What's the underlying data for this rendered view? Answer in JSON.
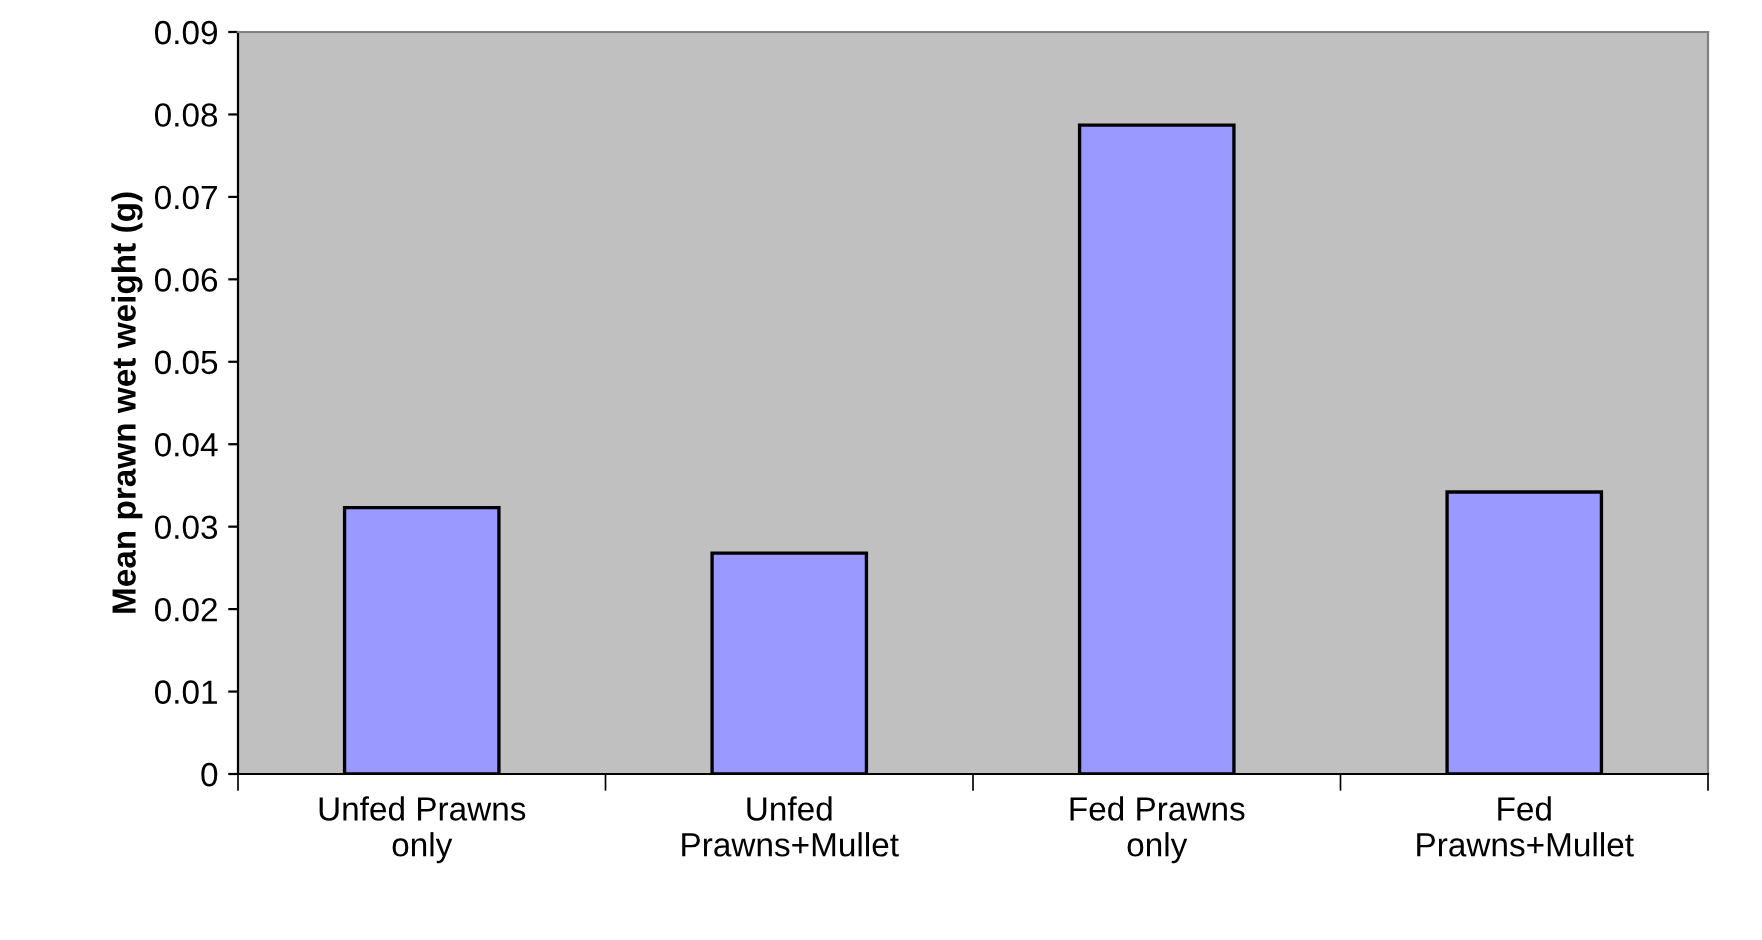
{
  "chart_data": {
    "type": "bar",
    "ylabel": "Mean prawn wet weight (g)",
    "categories": [
      "Unfed Prawns\nonly",
      "Unfed\nPrawns+Mullet",
      "Fed Prawns\nonly",
      "Fed\nPrawns+Mullet"
    ],
    "values": [
      0.0323,
      0.0268,
      0.0787,
      0.0342
    ],
    "color": "#9999ff",
    "ylim": [
      0,
      0.09
    ],
    "yticks": [
      0,
      0.01,
      0.02,
      0.03,
      0.04,
      0.05,
      0.06,
      0.07,
      0.08,
      0.09
    ],
    "grid": false
  }
}
